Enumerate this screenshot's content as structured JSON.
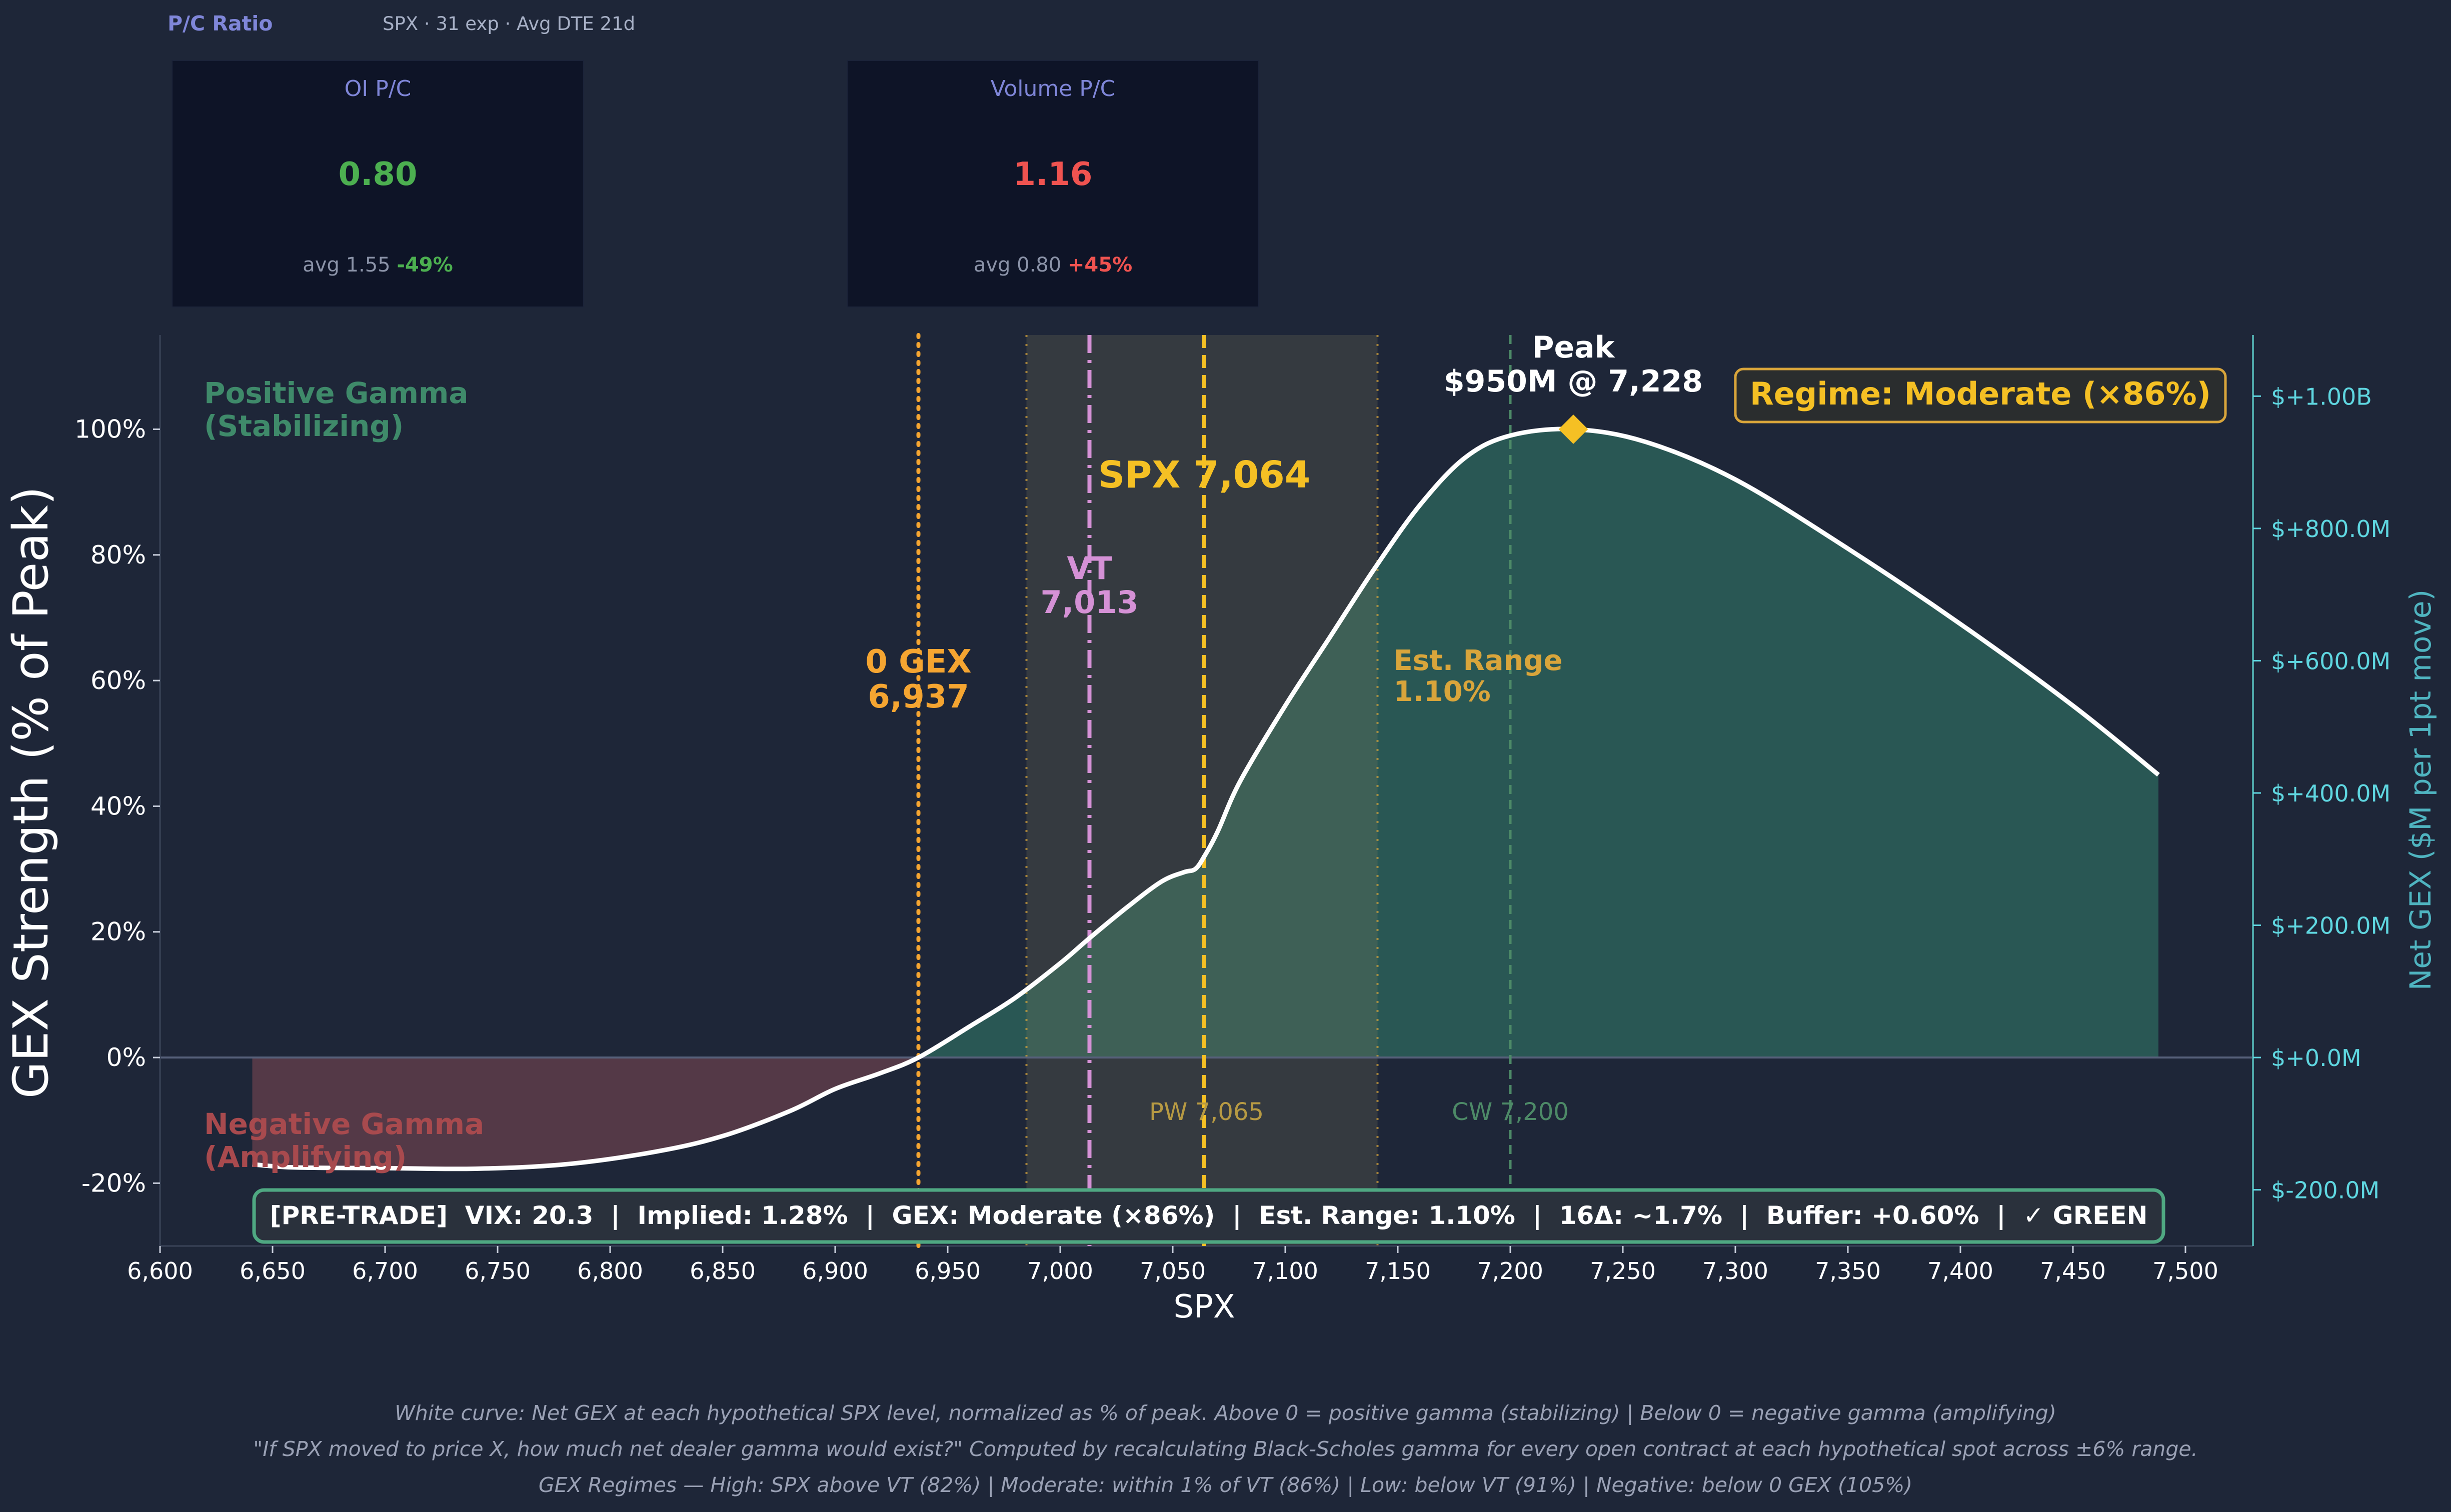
{
  "header": {
    "title": "P/C Ratio",
    "subtitle": "SPX · 31 exp · Avg DTE 21d"
  },
  "cards": [
    {
      "label": "OI P/C",
      "value": "0.80",
      "value_color": "#4caf50",
      "avg_text": "avg 1.55",
      "delta": "-49%",
      "delta_color": "#4caf50"
    },
    {
      "label": "Volume P/C",
      "value": "1.16",
      "value_color": "#ef5350",
      "avg_text": "avg 0.80",
      "delta": "+45%",
      "delta_color": "#ef5350"
    }
  ],
  "chart_data": {
    "type": "area",
    "xlabel": "SPX",
    "ylabel": "GEX Strength (% of Peak)",
    "y2label": "Net GEX ($M per 1pt move)",
    "xlim": [
      6600,
      7530
    ],
    "ylim": [
      -30,
      115
    ],
    "x_ticks": [
      "6,600",
      "6,650",
      "6,700",
      "6,750",
      "6,800",
      "6,850",
      "6,900",
      "6,950",
      "7,000",
      "7,050",
      "7,100",
      "7,150",
      "7,200",
      "7,250",
      "7,300",
      "7,350",
      "7,400",
      "7,450",
      "7,500"
    ],
    "y_ticks": [
      "-20%",
      "0%",
      "20%",
      "40%",
      "60%",
      "80%",
      "100%"
    ],
    "y2_ticks": [
      "$-200.0M",
      "$+0.0M",
      "$+200.0M",
      "$+400.0M",
      "$+600.0M",
      "$+800.0M",
      "$+1.00B"
    ],
    "series": [
      {
        "x": [
          6641,
          6660,
          6700,
          6740,
          6780,
          6820,
          6850,
          6880,
          6900,
          6920,
          6937,
          6960,
          6980,
          7000,
          7013,
          7030,
          7045,
          7055,
          7060,
          7064,
          7070,
          7080,
          7100,
          7120,
          7140,
          7160,
          7180,
          7200,
          7228,
          7260,
          7300,
          7350,
          7400,
          7450,
          7488
        ],
        "y": [
          -17,
          -17.5,
          -17.6,
          -17.7,
          -17,
          -15,
          -12.5,
          -8.5,
          -5,
          -2.5,
          0,
          5,
          9.5,
          15,
          19,
          24,
          28,
          29.5,
          30,
          32,
          36,
          44,
          56,
          67,
          78,
          88,
          95.5,
          99,
          100,
          98,
          92,
          81,
          69,
          56,
          45
        ]
      }
    ],
    "levels": [
      {
        "label_top": "0 GEX",
        "label_bottom": "6,937",
        "x": 6937,
        "color": "#f5a531",
        "style": "dotted"
      },
      {
        "label_top": "VT",
        "label_bottom": "7,013",
        "x": 7013,
        "color": "#d591d6",
        "style": "dashdot"
      },
      {
        "label": "SPX 7,064",
        "x": 7064,
        "color": "#f5c024",
        "style": "dashed"
      },
      {
        "label": "PW 7,065",
        "x": 7065,
        "color": "#b79a43"
      },
      {
        "label": "CW 7,200",
        "x": 7200,
        "color": "#4d8a67",
        "style": "dashed"
      }
    ],
    "est_range": {
      "x_from": 6985,
      "x_to": 7141,
      "label_top": "Est. Range",
      "label_bottom": "1.10%",
      "color": "#d9a53b"
    },
    "peak": {
      "label_top": "Peak",
      "label_bottom": "$950M @ 7,228",
      "x": 7228,
      "y": 100
    },
    "regime_label": "Regime: Moderate (×86%)",
    "positive_zone_label": [
      "Positive Gamma",
      "(Stabilizing)"
    ],
    "negative_zone_label": [
      "Negative Gamma",
      "(Amplifying)"
    ],
    "status_bar": "[PRE-TRADE]  VIX: 20.3  |  Implied: 1.28%  |  GEX: Moderate (×86%)  |  Est. Range: 1.10%  |  16Δ: ~1.7%  |  Buffer: +0.60%  |  ✓ GREEN",
    "colors": {
      "positive_fill": "#2a5a55",
      "negative_fill": "#573a48",
      "curve": "#ffffff",
      "right_axis": "#5fd6e0",
      "status_border": "#4fa882"
    }
  },
  "captions": [
    "White curve: Net GEX at each hypothetical SPX level, normalized as % of peak.  Above 0 = positive gamma (stabilizing)  |  Below 0 = negative gamma (amplifying)",
    "\"If SPX moved to price X, how much net dealer gamma would exist?\" Computed by recalculating Black-Scholes gamma for every open contract at each hypothetical spot across ±6% range.",
    "GEX Regimes — High: SPX above VT (82%)  |  Moderate: within 1% of VT (86%)  |  Low: below VT (91%)  |  Negative: below 0 GEX (105%)"
  ]
}
